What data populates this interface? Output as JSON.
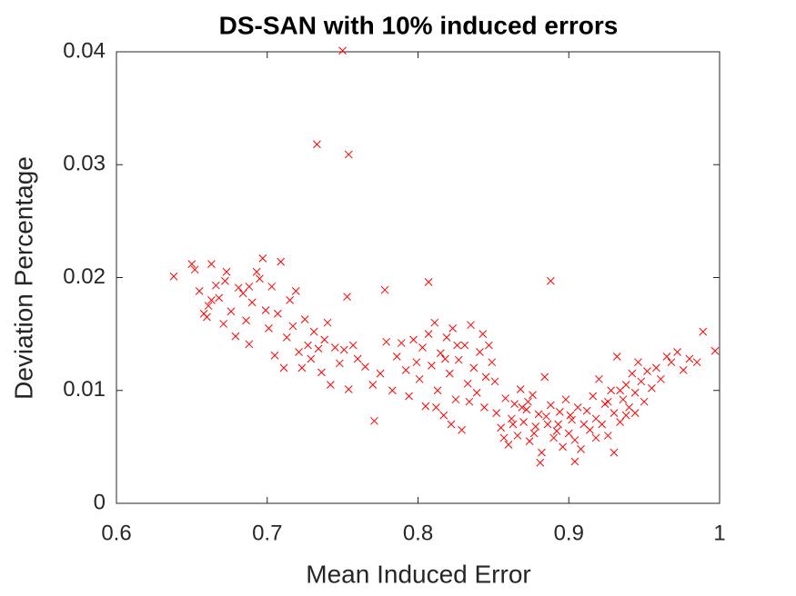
{
  "chart_data": {
    "type": "scatter",
    "title": "DS-SAN with 10% induced errors",
    "x_label": "Mean Induced Error",
    "y_label": "Deviation Percentage",
    "xlim": [
      0.6,
      1
    ],
    "xticks": [
      0.6,
      0.7,
      0.8,
      0.9,
      1
    ],
    "ylim": [
      0,
      0.04
    ],
    "yticks": [
      0,
      0.01,
      0.02,
      0.03,
      0.04
    ],
    "color": "#ff0000",
    "marker": "x",
    "x": [
      0.652,
      0.655,
      0.658,
      0.661,
      0.663,
      0.666,
      0.668,
      0.671,
      0.673,
      0.676,
      0.679,
      0.681,
      0.684,
      0.686,
      0.688,
      0.69,
      0.693,
      0.695,
      0.697,
      0.699,
      0.701,
      0.703,
      0.705,
      0.707,
      0.709,
      0.711,
      0.713,
      0.715,
      0.717,
      0.719,
      0.721,
      0.723,
      0.725,
      0.727,
      0.729,
      0.731,
      0.734,
      0.736,
      0.738,
      0.74,
      0.742,
      0.745,
      0.748,
      0.751,
      0.754,
      0.757,
      0.76,
      0.663,
      0.672,
      0.688,
      0.66,
      0.65,
      0.765,
      0.77,
      0.775,
      0.779,
      0.783,
      0.786,
      0.789,
      0.792,
      0.794,
      0.797,
      0.799,
      0.801,
      0.803,
      0.805,
      0.807,
      0.809,
      0.811,
      0.813,
      0.815,
      0.817,
      0.819,
      0.821,
      0.823,
      0.825,
      0.827,
      0.829,
      0.831,
      0.833,
      0.835,
      0.837,
      0.839,
      0.841,
      0.843,
      0.845,
      0.847,
      0.849,
      0.851,
      0.818,
      0.826,
      0.812,
      0.822,
      0.834,
      0.844,
      0.852,
      0.855,
      0.858,
      0.86,
      0.862,
      0.864,
      0.866,
      0.868,
      0.87,
      0.872,
      0.874,
      0.876,
      0.878,
      0.88,
      0.882,
      0.884,
      0.886,
      0.888,
      0.89,
      0.892,
      0.894,
      0.896,
      0.898,
      0.9,
      0.902,
      0.904,
      0.906,
      0.908,
      0.91,
      0.863,
      0.869,
      0.877,
      0.885,
      0.893,
      0.901,
      0.873,
      0.857,
      0.912,
      0.914,
      0.916,
      0.918,
      0.92,
      0.922,
      0.924,
      0.926,
      0.928,
      0.93,
      0.932,
      0.934,
      0.936,
      0.938,
      0.94,
      0.942,
      0.944,
      0.946,
      0.948,
      0.95,
      0.952,
      0.955,
      0.958,
      0.961,
      0.965,
      0.968,
      0.972,
      0.976,
      0.98,
      0.985,
      0.93,
      0.926,
      0.938,
      0.934,
      0.944,
      0.918,
      0.638,
      0.75,
      0.733,
      0.754,
      0.753,
      0.778,
      0.807,
      0.888,
      0.881,
      0.904,
      0.771,
      0.989,
      0.997
    ],
    "values": [
      0.0207,
      0.0188,
      0.0168,
      0.0175,
      0.0212,
      0.0193,
      0.0182,
      0.0159,
      0.0205,
      0.017,
      0.0148,
      0.0191,
      0.0186,
      0.0162,
      0.0141,
      0.0178,
      0.0205,
      0.0199,
      0.0217,
      0.0171,
      0.0155,
      0.0192,
      0.0131,
      0.0168,
      0.0214,
      0.012,
      0.0147,
      0.018,
      0.0157,
      0.0188,
      0.0134,
      0.012,
      0.0163,
      0.014,
      0.0128,
      0.0152,
      0.0137,
      0.0116,
      0.0145,
      0.016,
      0.0105,
      0.0138,
      0.0124,
      0.0136,
      0.0101,
      0.014,
      0.0128,
      0.018,
      0.0197,
      0.0192,
      0.0165,
      0.0212,
      0.0121,
      0.0105,
      0.0115,
      0.0143,
      0.01,
      0.013,
      0.0142,
      0.0118,
      0.0095,
      0.0145,
      0.0125,
      0.011,
      0.0138,
      0.0086,
      0.015,
      0.0122,
      0.016,
      0.01,
      0.0133,
      0.0078,
      0.0147,
      0.0115,
      0.0155,
      0.0092,
      0.0127,
      0.0065,
      0.014,
      0.0106,
      0.0158,
      0.012,
      0.0098,
      0.0134,
      0.015,
      0.0112,
      0.014,
      0.0125,
      0.0108,
      0.0128,
      0.014,
      0.0085,
      0.007,
      0.009,
      0.0085,
      0.008,
      0.0067,
      0.0093,
      0.0052,
      0.0075,
      0.0088,
      0.006,
      0.0101,
      0.0072,
      0.0083,
      0.0055,
      0.0096,
      0.0068,
      0.0079,
      0.0045,
      0.0112,
      0.007,
      0.0087,
      0.0058,
      0.0064,
      0.0081,
      0.005,
      0.0092,
      0.0062,
      0.0074,
      0.0056,
      0.0085,
      0.0048,
      0.007,
      0.007,
      0.0085,
      0.0062,
      0.0077,
      0.007,
      0.0078,
      0.009,
      0.0058,
      0.0082,
      0.0065,
      0.0095,
      0.0075,
      0.011,
      0.007,
      0.0088,
      0.006,
      0.01,
      0.008,
      0.013,
      0.0072,
      0.0092,
      0.0105,
      0.0085,
      0.0115,
      0.0098,
      0.0125,
      0.0108,
      0.009,
      0.0117,
      0.0102,
      0.012,
      0.011,
      0.013,
      0.0125,
      0.0134,
      0.0118,
      0.0128,
      0.0125,
      0.0045,
      0.009,
      0.0078,
      0.01,
      0.008,
      0.0058,
      0.0201,
      0.0401,
      0.0318,
      0.0309,
      0.0183,
      0.0189,
      0.0196,
      0.0197,
      0.0036,
      0.0037,
      0.0073,
      0.0152,
      0.0135
    ]
  }
}
